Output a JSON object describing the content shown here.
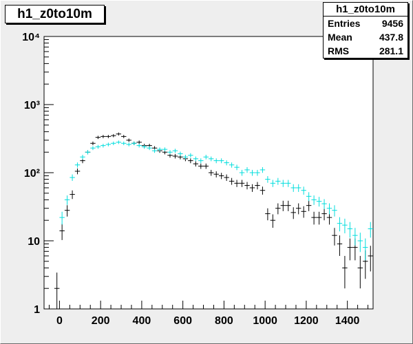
{
  "histogram": {
    "title": "h1_z0to10m",
    "stats": {
      "name": "h1_z0to10m",
      "rows": [
        {
          "label": "Entries",
          "value": "9456"
        },
        {
          "label": "Mean",
          "value": "437.8"
        },
        {
          "label": "RMS",
          "value": "281.1"
        }
      ]
    }
  },
  "chart_data": {
    "type": "scatter",
    "title": "h1_z0to10m",
    "xlabel": "",
    "ylabel": "",
    "xlim": [
      -75,
      1525
    ],
    "ylim": [
      1,
      10000
    ],
    "yscale": "log",
    "grid": false,
    "bin_width": 25,
    "x_ticks": [
      0,
      200,
      400,
      600,
      800,
      1000,
      1200,
      1400
    ],
    "x_tick_labels": [
      "0",
      "200",
      "400",
      "600",
      "800",
      "1000",
      "1200",
      "1400"
    ],
    "y_ticks": [
      1,
      10,
      100,
      1000,
      10000
    ],
    "y_tick_labels": [
      "1",
      "10",
      "10²",
      "10³",
      "10⁴"
    ],
    "series": [
      {
        "color": "#000000",
        "x": [
          -12.5,
          12.5,
          37.5,
          62.5,
          87.5,
          112.5,
          137.5,
          162.5,
          187.5,
          212.5,
          237.5,
          262.5,
          287.5,
          312.5,
          337.5,
          362.5,
          387.5,
          412.5,
          437.5,
          462.5,
          487.5,
          512.5,
          537.5,
          562.5,
          587.5,
          612.5,
          637.5,
          662.5,
          687.5,
          712.5,
          737.5,
          762.5,
          787.5,
          812.5,
          837.5,
          862.5,
          887.5,
          912.5,
          937.5,
          962.5,
          987.5,
          1012.5,
          1037.5,
          1062.5,
          1087.5,
          1112.5,
          1137.5,
          1162.5,
          1187.5,
          1212.5,
          1237.5,
          1262.5,
          1287.5,
          1312.5,
          1337.5,
          1362.5,
          1387.5,
          1412.5,
          1437.5,
          1462.5,
          1487.5,
          1512.5
        ],
        "y": [
          2,
          14,
          28,
          48,
          105,
          150,
          200,
          270,
          330,
          340,
          340,
          350,
          370,
          340,
          300,
          270,
          280,
          250,
          250,
          230,
          210,
          200,
          180,
          175,
          170,
          160,
          150,
          135,
          125,
          125,
          100,
          95,
          90,
          85,
          75,
          70,
          70,
          65,
          60,
          65,
          55,
          25,
          20,
          30,
          33,
          33,
          26,
          30,
          27,
          33,
          22,
          22,
          25,
          22,
          12,
          9,
          4,
          8,
          8,
          4,
          5,
          6
        ]
      },
      {
        "color": "#00dddd",
        "x": [
          12.5,
          37.5,
          62.5,
          87.5,
          112.5,
          137.5,
          162.5,
          187.5,
          212.5,
          237.5,
          262.5,
          287.5,
          312.5,
          337.5,
          362.5,
          387.5,
          412.5,
          437.5,
          462.5,
          487.5,
          512.5,
          537.5,
          562.5,
          587.5,
          612.5,
          637.5,
          662.5,
          687.5,
          712.5,
          737.5,
          762.5,
          787.5,
          812.5,
          837.5,
          862.5,
          887.5,
          912.5,
          937.5,
          962.5,
          987.5,
          1012.5,
          1037.5,
          1062.5,
          1087.5,
          1112.5,
          1137.5,
          1162.5,
          1187.5,
          1212.5,
          1237.5,
          1262.5,
          1287.5,
          1312.5,
          1337.5,
          1362.5,
          1387.5,
          1412.5,
          1437.5,
          1462.5,
          1487.5,
          1512.5
        ],
        "y": [
          22,
          40,
          85,
          130,
          170,
          200,
          230,
          240,
          250,
          260,
          270,
          280,
          270,
          260,
          270,
          250,
          240,
          230,
          210,
          220,
          220,
          200,
          210,
          190,
          170,
          180,
          160,
          150,
          170,
          160,
          150,
          150,
          140,
          130,
          120,
          100,
          110,
          100,
          100,
          110,
          80,
          70,
          75,
          70,
          70,
          60,
          60,
          55,
          45,
          40,
          38,
          35,
          30,
          28,
          18,
          17,
          15,
          12,
          10,
          8,
          15
        ]
      }
    ]
  }
}
